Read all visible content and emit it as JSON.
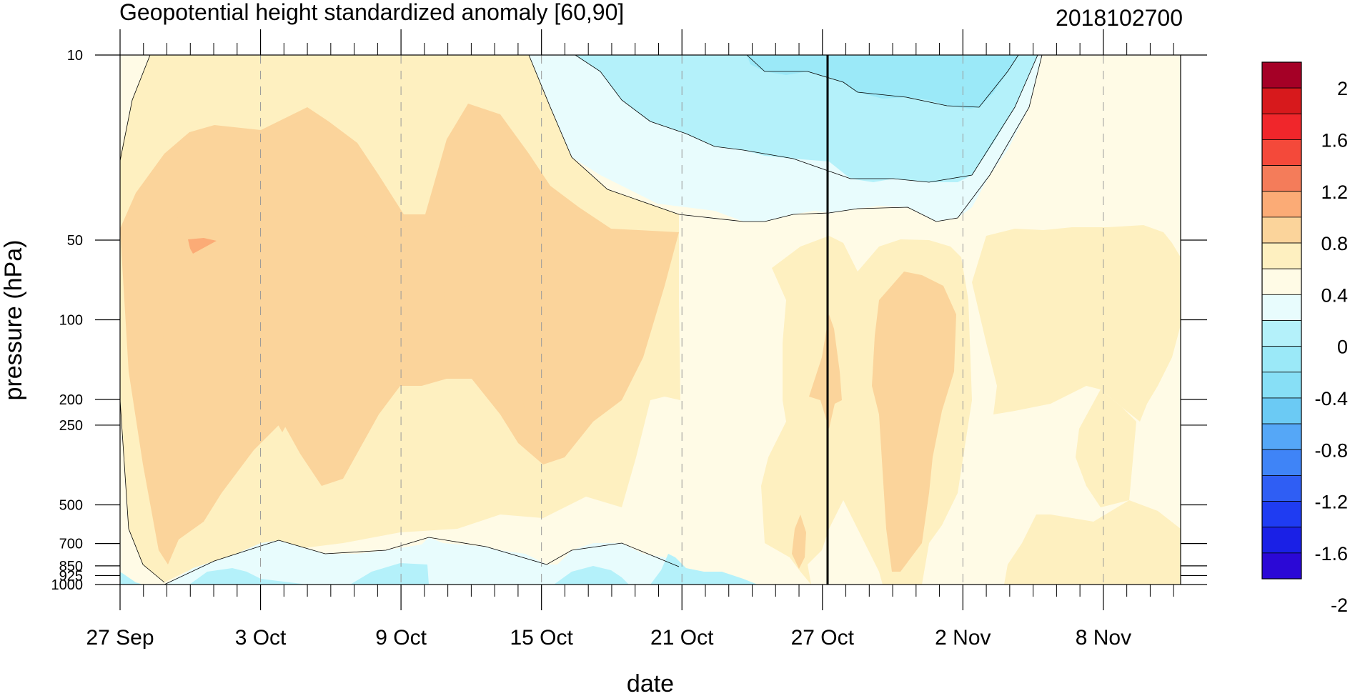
{
  "chart_data": {
    "type": "heatmap",
    "title": "Geopotential height standardized anomaly [60,90]",
    "date_label": "2018102700",
    "xlabel": "date",
    "ylabel": "pressure (hPa)",
    "x_ticks": [
      "27 Sep",
      "3 Oct",
      "9 Oct",
      "15 Oct",
      "21 Oct",
      "27 Oct",
      "2 Nov",
      "8 Nov"
    ],
    "y_ticks": [
      10,
      50,
      100,
      200,
      250,
      500,
      700,
      850,
      925,
      1000
    ],
    "y_scale": "log",
    "ylim": [
      1000,
      10
    ],
    "current_date": "27 Oct",
    "colorbar": {
      "labels": [
        "2",
        "1.6",
        "1.2",
        "0.8",
        "0.4",
        "0",
        "-0.4",
        "-0.8",
        "-1.2",
        "-1.6",
        "-2"
      ],
      "colors": [
        "#a50026",
        "#d7191c",
        "#f0262b",
        "#f4493a",
        "#f47c5a",
        "#fbab76",
        "#fbd49b",
        "#fef0c0",
        "#fffbe6",
        "#e8fcfd",
        "#b4f1fa",
        "#9be9f8",
        "#87dff6",
        "#6bcaf4",
        "#55a7f7",
        "#3f84f7",
        "#2f5ef4",
        "#1f3cf2",
        "#1a20e6",
        "#2b08d6"
      ]
    },
    "grid": "vertical-dashed-at-ticks",
    "legend": "right"
  }
}
